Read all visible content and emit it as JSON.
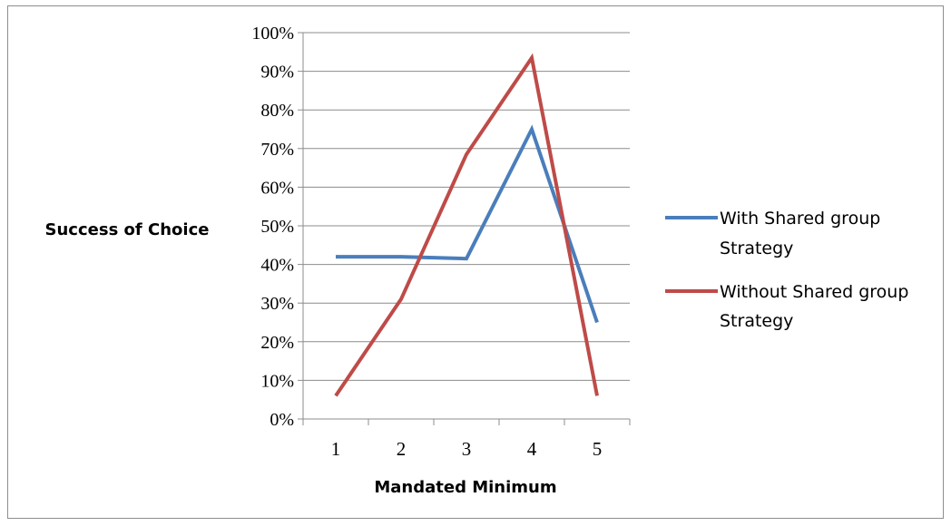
{
  "chart_data": {
    "type": "line",
    "categories": [
      "1",
      "2",
      "3",
      "4",
      "5"
    ],
    "xlabel": "Mandated Minimum",
    "ylabel": "Success of Choice",
    "ylim": [
      0,
      100
    ],
    "y_ticks": [
      "0%",
      "10%",
      "20%",
      "30%",
      "40%",
      "50%",
      "60%",
      "70%",
      "80%",
      "90%",
      "100%"
    ],
    "grid": true,
    "legend_position": "right",
    "series": [
      {
        "name_lines": [
          "With Shared group",
          "Strategy"
        ],
        "color": "#4a7ebb",
        "values": [
          42,
          42,
          41.5,
          75,
          25
        ]
      },
      {
        "name_lines": [
          "Without Shared group",
          "Strategy"
        ],
        "color": "#be4b48",
        "values": [
          6,
          31,
          68.5,
          93.5,
          6
        ]
      }
    ]
  }
}
